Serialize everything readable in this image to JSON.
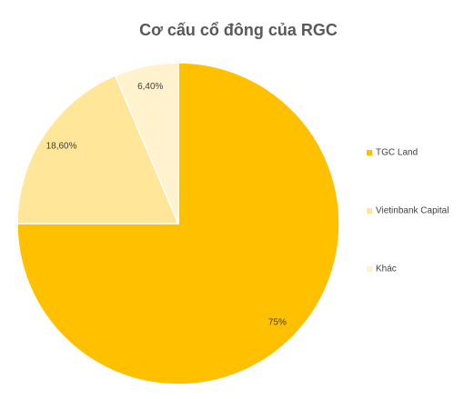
{
  "chart_data": {
    "type": "pie",
    "title": "Cơ cấu cổ đông của RGC",
    "categories": [
      "TGC Land",
      "Vietinbank Capital",
      "Khác"
    ],
    "values": [
      75,
      18.6,
      6.4
    ],
    "value_labels": [
      "75%",
      "18,60%",
      "6,40%"
    ],
    "colors": [
      "#FFC000",
      "#FFE699",
      "#FFF2CC"
    ],
    "legend": "right"
  }
}
